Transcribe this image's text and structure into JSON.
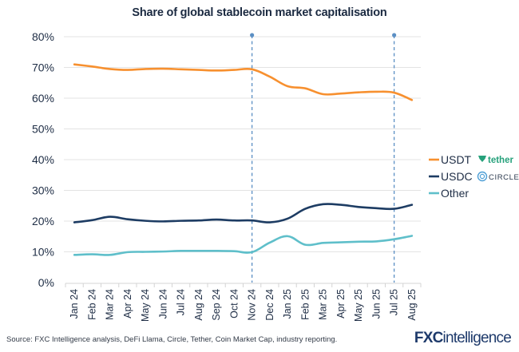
{
  "title": "Share of global stablecoin market capitalisation",
  "source": "Source: FXC Intelligence analysis, DeFi Llama, Circle, Tether, Coin Market Cap, industry reporting.",
  "logo": {
    "bold": "FXC",
    "rest": "intelligence"
  },
  "chart_data": {
    "type": "line",
    "title": "Share of global stablecoin market capitalisation",
    "xlabel": "",
    "ylabel": "",
    "ylim": [
      0,
      80
    ],
    "yticks": [
      "0%",
      "10%",
      "20%",
      "30%",
      "40%",
      "50%",
      "60%",
      "70%",
      "80%"
    ],
    "ytick_values": [
      0,
      10,
      20,
      30,
      40,
      50,
      60,
      70,
      80
    ],
    "grid": true,
    "legend_position": "right",
    "categories": [
      "Jan 24",
      "Feb 24",
      "Mar 24",
      "Apr 24",
      "May 24",
      "Jun 24",
      "Jul 24",
      "Aug 24",
      "Sep 24",
      "Oct 24",
      "Nov 24",
      "Dec 24",
      "Jan 25",
      "Feb 25",
      "Mar 25",
      "Apr 25",
      "May 25",
      "Jun 25",
      "Jul 25",
      "Aug 25"
    ],
    "series": [
      {
        "name": "USDT",
        "brand": "tether",
        "color": "#f7902f",
        "values": [
          71.0,
          70.3,
          69.5,
          69.2,
          69.5,
          69.6,
          69.4,
          69.2,
          69.0,
          69.2,
          69.4,
          67.0,
          63.9,
          63.2,
          61.3,
          61.5,
          61.9,
          62.1,
          61.8,
          59.4
        ]
      },
      {
        "name": "USDC",
        "brand": "CIRCLE",
        "color": "#1d3c63",
        "values": [
          19.6,
          20.3,
          21.4,
          20.6,
          20.1,
          19.9,
          20.1,
          20.2,
          20.5,
          20.2,
          20.2,
          19.6,
          20.8,
          24.0,
          25.5,
          25.3,
          24.6,
          24.2,
          24.0,
          25.3
        ]
      },
      {
        "name": "Other",
        "brand": "",
        "color": "#5fbfca",
        "values": [
          9.0,
          9.2,
          9.0,
          9.9,
          10.0,
          10.1,
          10.3,
          10.3,
          10.3,
          10.2,
          9.9,
          13.0,
          15.1,
          12.3,
          12.9,
          13.1,
          13.3,
          13.4,
          14.1,
          15.2
        ]
      }
    ],
    "annotations": [
      {
        "type": "vertical-dashed-line",
        "at": "Nov 24",
        "color": "#5b8fc4"
      },
      {
        "type": "vertical-dashed-line",
        "at": "Jul 25",
        "color": "#5b8fc4"
      }
    ]
  },
  "brand_colors": {
    "tether": "#26a17b",
    "circle": "#4f9fd6"
  }
}
